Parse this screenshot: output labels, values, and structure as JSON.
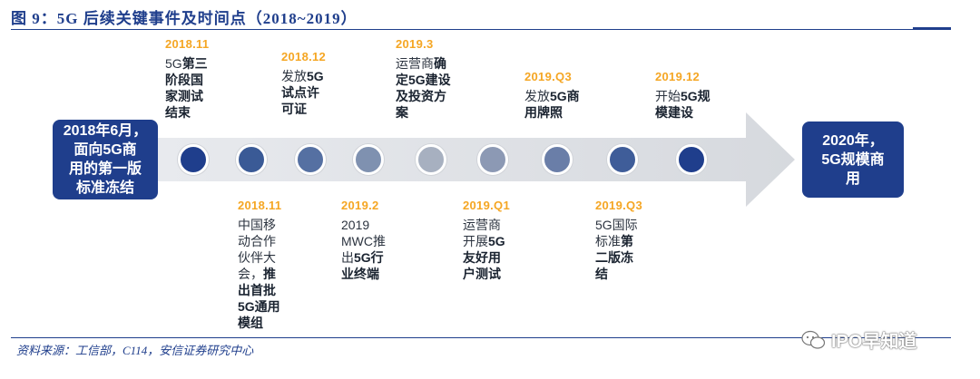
{
  "title": "图 9：5G 后续关键事件及时间点（2018~2019）",
  "start_box": "2018年6月，\n面向5G商\n用的第一版\n标准冻结",
  "end_box": "2020年，\n5G规模商\n用",
  "events_top": [
    {
      "date": "2018.11",
      "parts": [
        {
          "t": "5G"
        },
        {
          "t": "第三\n阶段国\n家测试\n结束",
          "b": true
        }
      ]
    },
    {
      "date": "2018.12",
      "parts": [
        {
          "t": "发放"
        },
        {
          "t": "5G\n试点许\n可证",
          "b": true
        }
      ]
    },
    {
      "date": "2019.3",
      "parts": [
        {
          "t": "运营商"
        },
        {
          "t": "确\n定5G建设\n及投资方\n案",
          "b": true
        }
      ]
    },
    {
      "date": "2019.Q3",
      "parts": [
        {
          "t": "发放"
        },
        {
          "t": "5G商\n用牌照",
          "b": true
        }
      ]
    },
    {
      "date": "2019.12",
      "parts": [
        {
          "t": "开始"
        },
        {
          "t": "5G规\n模建设",
          "b": true
        }
      ]
    }
  ],
  "events_bottom": [
    {
      "date": "2018.11",
      "parts": [
        {
          "t": "中国移\n动合作\n伙伴大\n会，"
        },
        {
          "t": "推\n出首批\n5G通用\n模组",
          "b": true
        }
      ]
    },
    {
      "date": "2019.2",
      "parts": [
        {
          "t": "2019\nMWC推\n出"
        },
        {
          "t": "5G行\n业终端",
          "b": true
        }
      ]
    },
    {
      "date": "2019.Q1",
      "parts": [
        {
          "t": "运营商\n开展"
        },
        {
          "t": "5G\n友好用\n户测试",
          "b": true
        }
      ]
    },
    {
      "date": "2019.Q3",
      "parts": [
        {
          "t": "5G国际\n标准"
        },
        {
          "t": "第\n二版冻\n结",
          "b": true
        }
      ]
    }
  ],
  "nodes": [
    {
      "color": "#1F3E8C"
    },
    {
      "color": "#3A5A96"
    },
    {
      "color": "#5570A2"
    },
    {
      "color": "#7F91B0"
    },
    {
      "color": "#A7B0C0"
    },
    {
      "color": "#8C99B4"
    },
    {
      "color": "#6A7EA8"
    },
    {
      "color": "#3F5D99"
    },
    {
      "color": "#1F3E8C"
    }
  ],
  "source": "资料来源：工信部，C114，安信证券研究中心",
  "watermark": "IPO早知道"
}
